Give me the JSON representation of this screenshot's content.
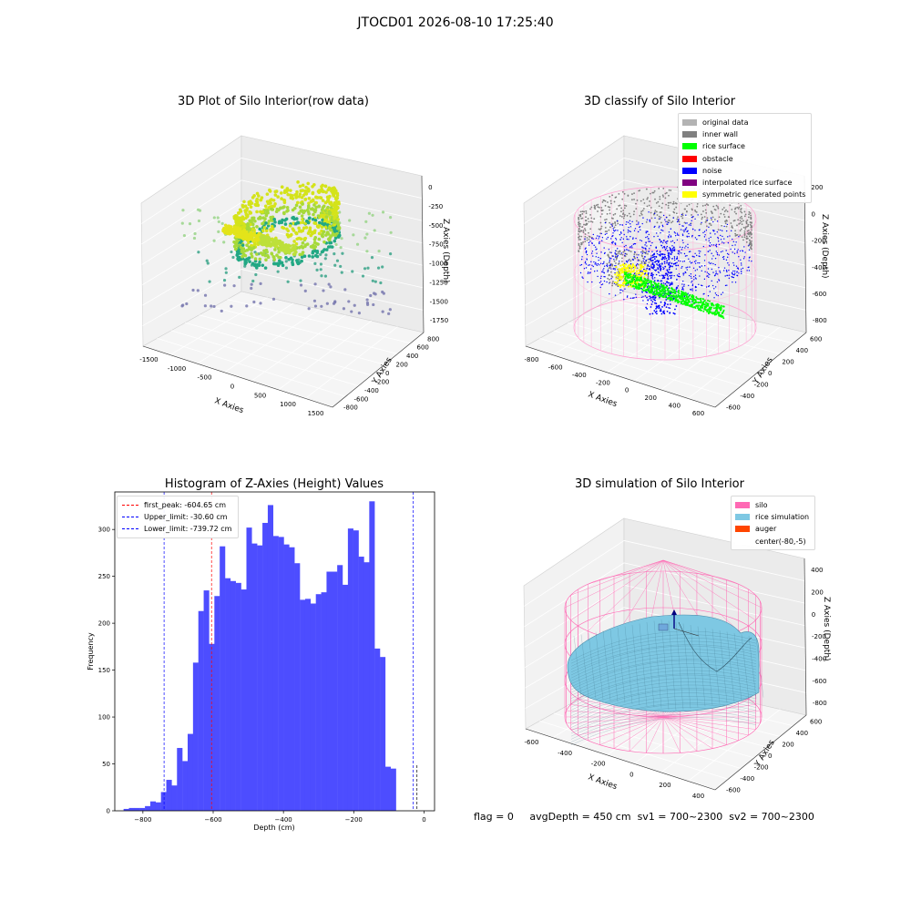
{
  "suptitle": "JTOCD01 2026-08-10 17:25:40",
  "colors": {
    "hist_bar": "#4d4dff",
    "peak_line": "#ff0000",
    "limit_line": "#0000ff",
    "silo_wire": "#ff69b4",
    "rice_sim": "#7ec8e3",
    "auger": "#ff4500"
  },
  "chart_data": [
    {
      "type": "scatter",
      "title": "3D Plot of Silo Interior(row data)",
      "xlabel": "X Axies",
      "ylabel": "Y Axies",
      "zlabel": "Z Axies (Depth)",
      "x_ticks": [
        "-1500",
        "-1000",
        "-500",
        "0",
        "500",
        "1000",
        "1500"
      ],
      "y_ticks": [
        "-800",
        "-600",
        "-400",
        "-200",
        "0",
        "200",
        "400",
        "600",
        "800"
      ],
      "z_ticks": [
        "0",
        "-250",
        "-500",
        "-750",
        "-1000",
        "-1250",
        "-1500",
        "-1750"
      ]
    },
    {
      "type": "scatter",
      "title": "3D classify of Silo Interior",
      "xlabel": "X Axies",
      "ylabel": "Y Axies",
      "zlabel": "Z Axies (Depth)",
      "x_ticks": [
        "-800",
        "-600",
        "-400",
        "-200",
        "0",
        "200",
        "400",
        "600"
      ],
      "y_ticks": [
        "-600",
        "-400",
        "-200",
        "0",
        "200",
        "400",
        "600"
      ],
      "z_ticks": [
        "200",
        "0",
        "-200",
        "-400",
        "-600",
        "-800"
      ],
      "legend": [
        {
          "label": "original data",
          "color": "#b3b3b3"
        },
        {
          "label": "inner wall",
          "color": "#808080"
        },
        {
          "label": "rice surface",
          "color": "#00ff00"
        },
        {
          "label": "obstacle",
          "color": "#ff0000"
        },
        {
          "label": "noise",
          "color": "#0000ff"
        },
        {
          "label": "interpolated rice surface",
          "color": "#800080"
        },
        {
          "label": "symmetric generated points",
          "color": "#ffff00"
        }
      ]
    },
    {
      "type": "bar",
      "title": "Histogram of Z-Axies (Height) Values",
      "xlabel": "Depth (cm)",
      "ylabel": "Frequency",
      "xlim": [
        -880,
        30
      ],
      "ylim": [
        0,
        340
      ],
      "x_ticks": [
        -800,
        -600,
        -400,
        -200,
        0
      ],
      "y_ticks": [
        0,
        50,
        100,
        150,
        200,
        250,
        300
      ],
      "bin_start": -855,
      "bin_width": 15.2,
      "values": [
        2,
        3,
        3,
        3,
        5,
        10,
        9,
        20,
        33,
        27,
        67,
        53,
        82,
        158,
        213,
        235,
        178,
        229,
        282,
        248,
        245,
        243,
        236,
        302,
        285,
        283,
        307,
        326,
        293,
        292,
        284,
        281,
        264,
        225,
        226,
        221,
        231,
        233,
        255,
        255,
        262,
        241,
        301,
        299,
        271,
        265,
        330,
        173,
        164,
        47,
        45
      ],
      "lines": [
        {
          "label": "first_peak: -604.65 cm",
          "x": -604.65,
          "color": "#ff0000"
        },
        {
          "label": "Upper_limit: -30.60 cm",
          "x": -30.6,
          "color": "#0000ff"
        },
        {
          "label": "Lower_limit: -739.72 cm",
          "x": -739.72,
          "color": "#0000ff"
        }
      ]
    },
    {
      "type": "area",
      "title": "3D simulation of Silo Interior",
      "xlabel": "X Axies",
      "ylabel": "Y Axies",
      "zlabel": "Z Axies (Depth)",
      "x_ticks": [
        "-600",
        "-400",
        "-200",
        "0",
        "200",
        "400"
      ],
      "y_ticks": [
        "-600",
        "-400",
        "-200",
        "0",
        "200",
        "400",
        "600"
      ],
      "z_ticks": [
        "400",
        "200",
        "0",
        "-200",
        "-400",
        "-600",
        "-800"
      ],
      "legend": [
        {
          "label": "silo",
          "color": "#ff69b4"
        },
        {
          "label": "rice simulation",
          "color": "#7ec8e3"
        },
        {
          "label": "auger",
          "color": "#ff4500"
        },
        {
          "label": "center(-80,-5)",
          "color": "#ffffff"
        }
      ]
    }
  ],
  "footer": {
    "flag": "flag = 0",
    "avg": "avgDepth = 450 cm",
    "sv1": "sv1 = 700~2300",
    "sv2": "sv2 = 700~2300"
  }
}
